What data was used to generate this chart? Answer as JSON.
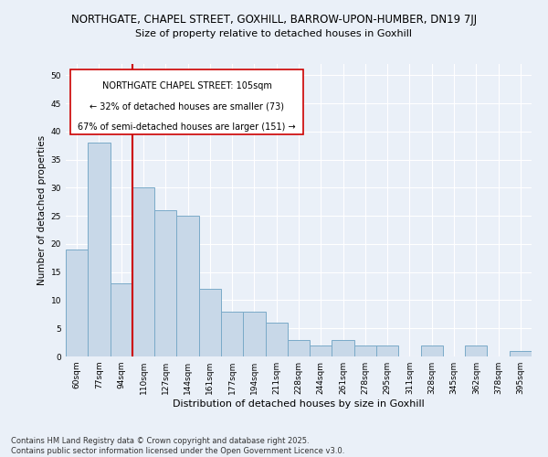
{
  "title_line1": "NORTHGATE, CHAPEL STREET, GOXHILL, BARROW-UPON-HUMBER, DN19 7JJ",
  "title_line2": "Size of property relative to detached houses in Goxhill",
  "xlabel": "Distribution of detached houses by size in Goxhill",
  "ylabel": "Number of detached properties",
  "categories": [
    "60sqm",
    "77sqm",
    "94sqm",
    "110sqm",
    "127sqm",
    "144sqm",
    "161sqm",
    "177sqm",
    "194sqm",
    "211sqm",
    "228sqm",
    "244sqm",
    "261sqm",
    "278sqm",
    "295sqm",
    "311sqm",
    "328sqm",
    "345sqm",
    "362sqm",
    "378sqm",
    "395sqm"
  ],
  "values": [
    19,
    38,
    13,
    30,
    26,
    25,
    12,
    8,
    8,
    6,
    3,
    2,
    3,
    2,
    2,
    0,
    2,
    0,
    2,
    0,
    1
  ],
  "bar_color": "#c8d8e8",
  "bar_edge_color": "#7aaac8",
  "vline_color": "#cc0000",
  "annotation_box_color": "#cc0000",
  "annotation_text_line1": "NORTHGATE CHAPEL STREET: 105sqm",
  "annotation_text_line2": "← 32% of detached houses are smaller (73)",
  "annotation_text_line3": "67% of semi-detached houses are larger (151) →",
  "ylim": [
    0,
    52
  ],
  "yticks": [
    0,
    5,
    10,
    15,
    20,
    25,
    30,
    35,
    40,
    45,
    50
  ],
  "background_color": "#eaf0f8",
  "plot_bg_color": "#eaf0f8",
  "footer_text": "Contains HM Land Registry data © Crown copyright and database right 2025.\nContains public sector information licensed under the Open Government Licence v3.0.",
  "title_fontsize": 8.5,
  "subtitle_fontsize": 8,
  "xlabel_fontsize": 8,
  "ylabel_fontsize": 7.5,
  "annotation_fontsize": 7,
  "tick_fontsize": 6.5,
  "footer_fontsize": 6
}
